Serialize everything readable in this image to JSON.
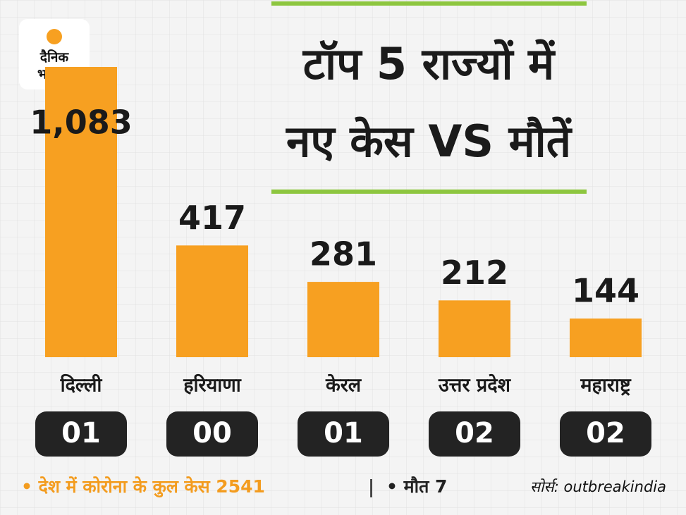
{
  "chart_data": {
    "type": "bar",
    "title_lines": [
      "टॉप 5 राज्यों में",
      "नए केस VS मौतें"
    ],
    "categories": [
      "दिल्ली",
      "हरियाणा",
      "केरल",
      "उत्तर प्रदेश",
      "महाराष्ट्र"
    ],
    "values": [
      1083,
      417,
      281,
      212,
      144
    ],
    "value_labels": [
      "1,083",
      "417",
      "281",
      "212",
      "144"
    ],
    "deaths": {
      "values": [
        1,
        0,
        1,
        2,
        2
      ],
      "value_labels": [
        "01",
        "00",
        "01",
        "02",
        "02"
      ]
    },
    "color": "#f7a021",
    "ylim": [
      0,
      1083
    ]
  },
  "logo": [
    "दैनिक",
    "भास्कर"
  ],
  "footer": {
    "total_cases": "• देश में कोरोना के कुल केस 2541",
    "separator": "|",
    "deaths": "• मौत 7",
    "source": "सोर्स: outbreakindia"
  }
}
